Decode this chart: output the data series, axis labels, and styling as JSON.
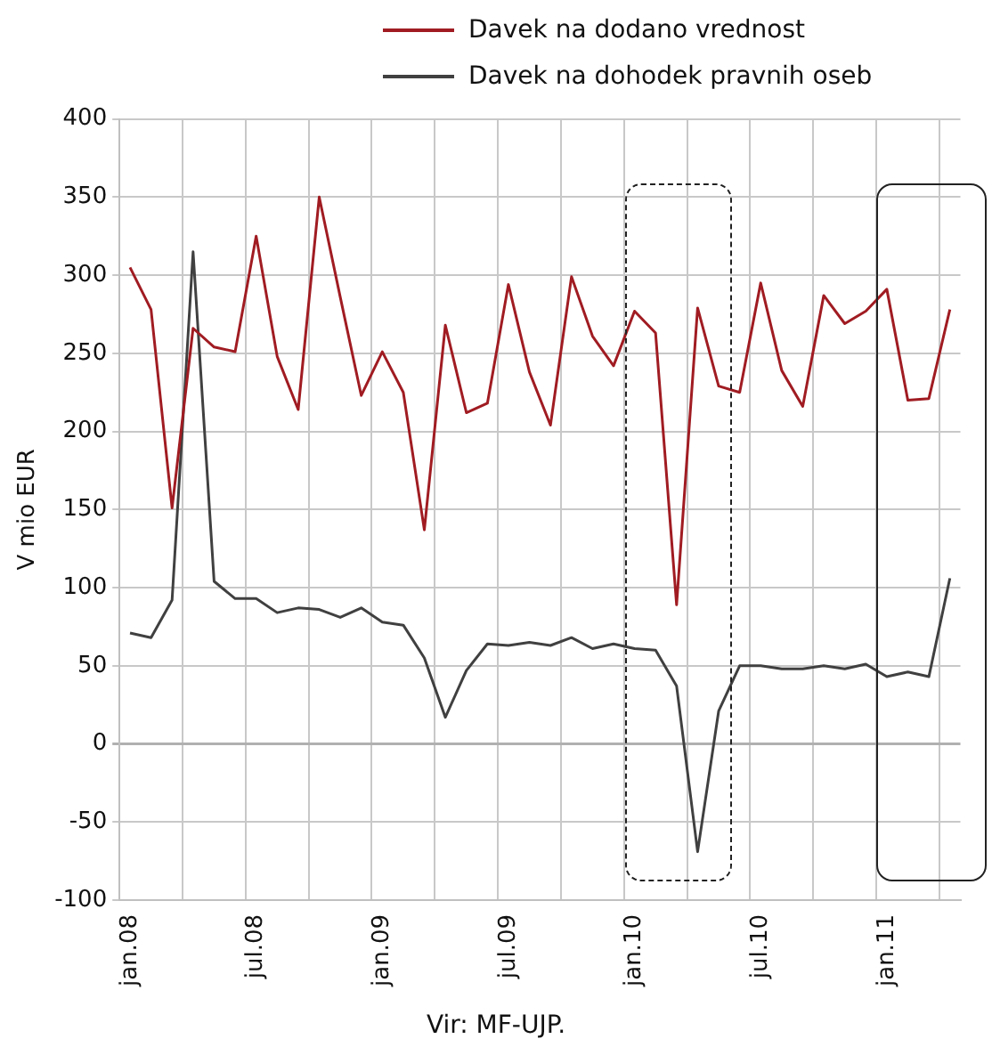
{
  "chart_data": {
    "type": "line",
    "ylabel": "V mio EUR",
    "annotations": [
      "Vir: MF-UJP."
    ],
    "categories": [
      "jan.08",
      null,
      null,
      null,
      null,
      null,
      "jul.08",
      null,
      null,
      null,
      null,
      null,
      "jan.09",
      null,
      null,
      null,
      null,
      null,
      "jul.09",
      null,
      null,
      null,
      null,
      null,
      "jan.10",
      null,
      null,
      null,
      null,
      null,
      "jul.10",
      null,
      null,
      null,
      null,
      null,
      "jan.11",
      null,
      null,
      null
    ],
    "series": [
      {
        "name": "Davek na dodano vrednost",
        "color": "#a01c22",
        "values": [
          305,
          278,
          151,
          266,
          254,
          251,
          325,
          248,
          214,
          350,
          286,
          223,
          251,
          225,
          137,
          268,
          212,
          218,
          294,
          238,
          204,
          299,
          261,
          242,
          277,
          263,
          89,
          279,
          229,
          225,
          295,
          239,
          216,
          287,
          269,
          277,
          291,
          220,
          221,
          278
        ]
      },
      {
        "name": "Davek na dohodek pravnih oseb",
        "color": "#404040",
        "values": [
          71,
          68,
          92,
          315,
          104,
          93,
          93,
          84,
          87,
          86,
          81,
          87,
          78,
          76,
          55,
          17,
          47,
          64,
          63,
          65,
          63,
          68,
          61,
          64,
          61,
          60,
          37,
          -69,
          21,
          50,
          50,
          48,
          48,
          50,
          48,
          51,
          43,
          46,
          43,
          106
        ]
      }
    ],
    "ylim": [
      -100,
      400
    ],
    "yticks": [
      -100,
      -50,
      0,
      50,
      100,
      150,
      200,
      250,
      300,
      350,
      400
    ],
    "grid": true,
    "legend": "top",
    "marker": "none",
    "line_style": "solid"
  }
}
